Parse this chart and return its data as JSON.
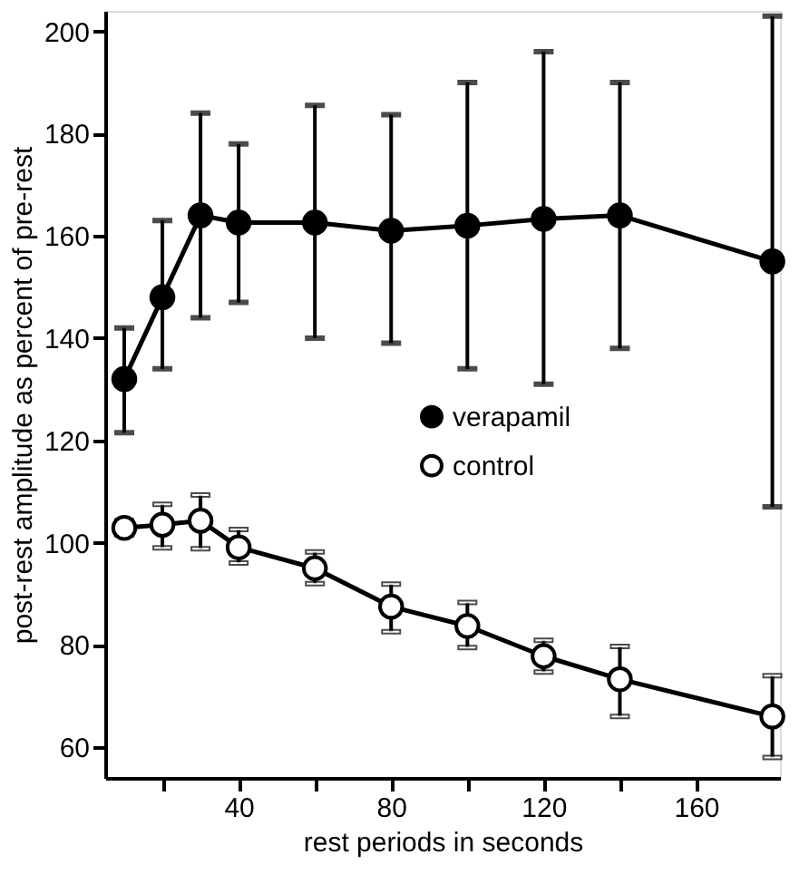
{
  "chart_data": {
    "type": "line",
    "xlabel": "rest periods in seconds",
    "ylabel": "post-rest amplitude as percent of pre-rest",
    "x": [
      10,
      20,
      30,
      40,
      60,
      80,
      100,
      120,
      140,
      180
    ],
    "series": [
      {
        "name": "verapamil",
        "color": "#000000",
        "marker": "circle",
        "values": [
          132,
          148,
          164,
          162.6,
          162.6,
          161,
          162,
          163.3,
          164,
          155
        ],
        "errors": [
          [
            121.5,
            142
          ],
          [
            134,
            163
          ],
          [
            144,
            184
          ],
          [
            147,
            178
          ],
          [
            140,
            185.5
          ],
          [
            139,
            183.7
          ],
          [
            134,
            190
          ],
          [
            131,
            196
          ],
          [
            138,
            190
          ],
          [
            107,
            203
          ]
        ]
      },
      {
        "name": "control",
        "color": "#000000",
        "marker": "circle",
        "values": [
          102.9,
          103.5,
          104.3,
          99.1,
          95,
          87.5,
          83.7,
          77.8,
          73.3,
          66
        ],
        "errors": [
          [
            101.5,
            104.3
          ],
          [
            99,
            107.5
          ],
          [
            98.8,
            109.3
          ],
          [
            96,
            102.6
          ],
          [
            92,
            98.2
          ],
          [
            82.6,
            91.9
          ],
          [
            79.5,
            88.3
          ],
          [
            74.7,
            80.9
          ],
          [
            66,
            79.7
          ],
          [
            58,
            74
          ]
        ]
      }
    ],
    "xlim": [
      5,
      182
    ],
    "ylim": [
      54,
      204
    ],
    "xticks": [
      {
        "value": 20,
        "label": null
      },
      40,
      {
        "value": 60,
        "label": null
      },
      80,
      {
        "value": 100,
        "label": null
      },
      120,
      {
        "value": 140,
        "label": null
      },
      160
    ],
    "yticks": [
      60,
      80,
      100,
      120,
      140,
      160,
      180,
      200
    ],
    "legend": "right",
    "grid": false,
    "line_style": "solid"
  }
}
